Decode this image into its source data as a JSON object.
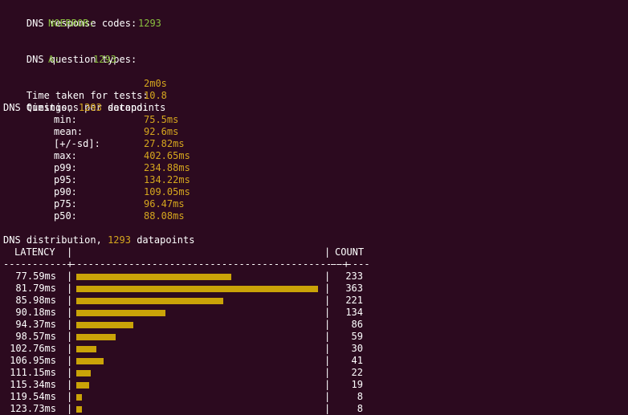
{
  "colors": {
    "background": "#2c0a1f",
    "text": "#ffffff",
    "code_value": "#8ac03f",
    "metric_value": "#d6a71e",
    "bar": "#caa308"
  },
  "response_codes": {
    "header": "DNS response codes:",
    "items": [
      {
        "name": "NOERROR:",
        "value": "1293"
      }
    ]
  },
  "question_types": {
    "header": "DNS question types:",
    "items": [
      {
        "name": "A:",
        "value": "1293"
      }
    ]
  },
  "summary": {
    "time_label": "Time taken for tests:",
    "time_value": "2m0s",
    "qps_label": "Questions per second:",
    "qps_value": "10.8"
  },
  "timings": {
    "prefix": "DNS timings,",
    "datapoints": "1293",
    "suffix": "datapoints",
    "rows": [
      {
        "label": "min:",
        "value": "75.5ms"
      },
      {
        "label": "mean:",
        "value": "92.6ms"
      },
      {
        "label": "[+/-sd]:",
        "value": "27.82ms"
      },
      {
        "label": "max:",
        "value": "402.65ms"
      },
      {
        "label": "p99:",
        "value": "234.88ms"
      },
      {
        "label": "p95:",
        "value": "134.22ms"
      },
      {
        "label": "p90:",
        "value": "109.05ms"
      },
      {
        "label": "p75:",
        "value": "96.47ms"
      },
      {
        "label": "p50:",
        "value": "88.08ms"
      }
    ]
  },
  "distribution": {
    "prefix": "DNS distribution,",
    "datapoints": "1293",
    "suffix": "datapoints",
    "col_latency": "LATENCY",
    "col_count": "COUNT",
    "sep_left": "-----------+",
    "sep_mid": "-----------------------------------------------+",
    "sep_right": "-------",
    "pipe": "|"
  },
  "chart_data": {
    "type": "bar",
    "orientation": "horizontal",
    "categories": [
      "77.59ms",
      "81.79ms",
      "85.98ms",
      "90.18ms",
      "94.37ms",
      "98.57ms",
      "102.76ms",
      "106.95ms",
      "111.15ms",
      "115.34ms",
      "119.54ms",
      "123.73ms"
    ],
    "values": [
      233,
      363,
      221,
      134,
      86,
      59,
      30,
      41,
      22,
      19,
      8,
      8
    ],
    "xlabel": "COUNT",
    "ylabel": "LATENCY"
  }
}
